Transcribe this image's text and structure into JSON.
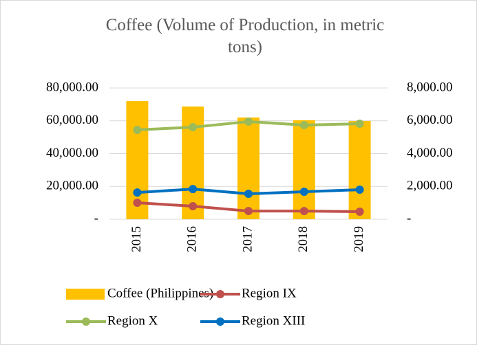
{
  "chart_data": {
    "type": "combo",
    "title": "Coffee (Volume of Production, in metric tons)",
    "categories": [
      "2015",
      "2016",
      "2017",
      "2018",
      "2019"
    ],
    "series": [
      {
        "name": "Coffee (Philippines)",
        "type": "bar",
        "axis": "y",
        "color": "#FFC000",
        "values": [
          72000,
          68700,
          62000,
          60300,
          59900
        ]
      },
      {
        "name": "Region IX",
        "type": "line",
        "axis": "y2",
        "color": "#C0504D",
        "values": [
          1005,
          795,
          500,
          500,
          460
        ]
      },
      {
        "name": "Region X",
        "type": "line",
        "axis": "y2",
        "color": "#9BBB59",
        "values": [
          5445,
          5610,
          5950,
          5740,
          5820
        ]
      },
      {
        "name": "Region XIII",
        "type": "line",
        "axis": "y2",
        "color": "#0070C0",
        "values": [
          1630,
          1840,
          1550,
          1675,
          1800
        ]
      }
    ],
    "ylim": [
      0,
      80000
    ],
    "yticks": [
      {
        "value": 0,
        "label": "-"
      },
      {
        "value": 20000,
        "label": "20,000.00"
      },
      {
        "value": 40000,
        "label": "40,000.00"
      },
      {
        "value": 60000,
        "label": "60,000.00"
      },
      {
        "value": 80000,
        "label": "80,000.00"
      }
    ],
    "y2lim": [
      0,
      8000
    ],
    "y2ticks": [
      {
        "value": 0,
        "label": "-"
      },
      {
        "value": 2000,
        "label": "2,000.00"
      },
      {
        "value": 4000,
        "label": "4,000.00"
      },
      {
        "value": 6000,
        "label": "6,000.00"
      },
      {
        "value": 8000,
        "label": "8,000.00"
      }
    ],
    "grid": true
  }
}
